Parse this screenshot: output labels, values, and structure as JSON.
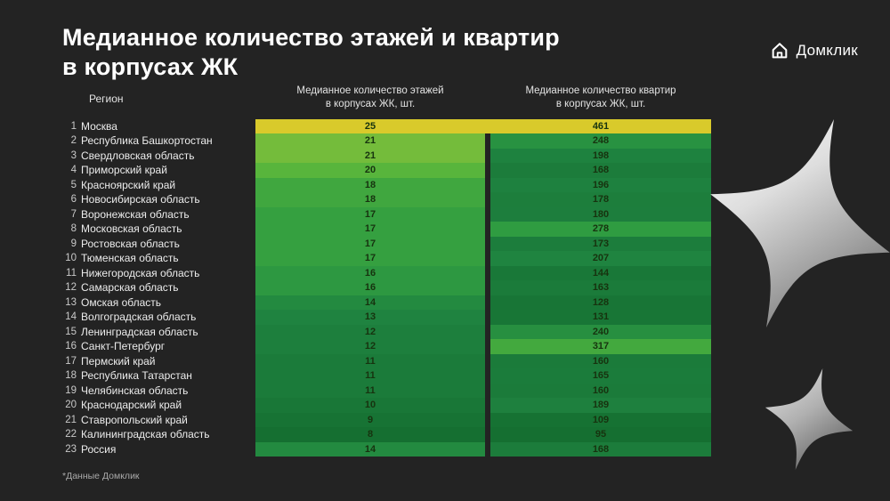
{
  "slide": {
    "title": "Медианное количество этажей и квартир\nв корпусах ЖК",
    "footnote": "*Данные Домклик",
    "background_color": "#232323"
  },
  "logo": {
    "text": "Домклик"
  },
  "chart_data": {
    "type": "table",
    "title": "Медианное количество этажей и квартир в корпусах ЖК",
    "columns": {
      "region": "Регион",
      "floors": "Медианное количество этажей\nв корпусах ЖК, шт.",
      "apartments": "Медианное количество квартир\nв корпусах ЖК, шт."
    },
    "rows": [
      {
        "rank": 1,
        "region": "Москва",
        "floors": 25,
        "apartments": 461
      },
      {
        "rank": 2,
        "region": "Республика Башкортостан",
        "floors": 21,
        "apartments": 248
      },
      {
        "rank": 3,
        "region": "Свердловская область",
        "floors": 21,
        "apartments": 198
      },
      {
        "rank": 4,
        "region": "Приморский край",
        "floors": 20,
        "apartments": 168
      },
      {
        "rank": 5,
        "region": "Красноярский край",
        "floors": 18,
        "apartments": 196
      },
      {
        "rank": 6,
        "region": "Новосибирская область",
        "floors": 18,
        "apartments": 178
      },
      {
        "rank": 7,
        "region": "Воронежская область",
        "floors": 17,
        "apartments": 180
      },
      {
        "rank": 8,
        "region": "Московская область",
        "floors": 17,
        "apartments": 278
      },
      {
        "rank": 9,
        "region": "Ростовская область",
        "floors": 17,
        "apartments": 173
      },
      {
        "rank": 10,
        "region": "Тюменская область",
        "floors": 17,
        "apartments": 207
      },
      {
        "rank": 11,
        "region": "Нижегородская область",
        "floors": 16,
        "apartments": 144
      },
      {
        "rank": 12,
        "region": "Самарская область",
        "floors": 16,
        "apartments": 163
      },
      {
        "rank": 13,
        "region": "Омская область",
        "floors": 14,
        "apartments": 128
      },
      {
        "rank": 14,
        "region": "Волгоградская область",
        "floors": 13,
        "apartments": 131
      },
      {
        "rank": 15,
        "region": "Ленинградская область",
        "floors": 12,
        "apartments": 240
      },
      {
        "rank": 16,
        "region": "Санкт-Петербург",
        "floors": 12,
        "apartments": 317
      },
      {
        "rank": 17,
        "region": "Пермский край",
        "floors": 11,
        "apartments": 160
      },
      {
        "rank": 18,
        "region": "Республика Татарстан",
        "floors": 11,
        "apartments": 165
      },
      {
        "rank": 19,
        "region": "Челябинская область",
        "floors": 11,
        "apartments": 160
      },
      {
        "rank": 20,
        "region": "Краснодарский край",
        "floors": 10,
        "apartments": 189
      },
      {
        "rank": 21,
        "region": "Ставропольский край",
        "floors": 9,
        "apartments": 109
      },
      {
        "rank": 22,
        "region": "Калининградская область",
        "floors": 8,
        "apartments": 95
      },
      {
        "rank": 23,
        "region": "Россия",
        "floors": 14,
        "apartments": 168
      }
    ],
    "color_scale": {
      "stops": [
        [
          0.0,
          "#156f31"
        ],
        [
          0.3,
          "#1f8340"
        ],
        [
          0.5,
          "#2f9c41"
        ],
        [
          0.7,
          "#55b43c"
        ],
        [
          0.85,
          "#9cc63a"
        ],
        [
          1.0,
          "#d9ca2b"
        ]
      ],
      "floors_range": [
        8,
        25
      ],
      "apartments_range": [
        95,
        461
      ],
      "value_text_color": "#17330f"
    }
  }
}
